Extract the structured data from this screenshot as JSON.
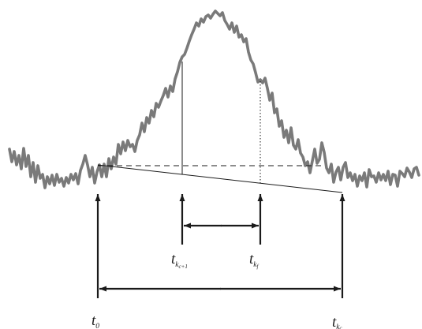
{
  "colors": {
    "signal": "#7a7a7a",
    "line": "#1a1a1a",
    "text": "#222222"
  },
  "labels": {
    "t0": {
      "main": "t",
      "sub": "0"
    },
    "t_left": {
      "main": "t",
      "sub": "k",
      "subsub": "c+1"
    },
    "t_right": {
      "main": "t",
      "sub": "k",
      "subsub": "f"
    },
    "t_end": {
      "main": "t",
      "sub": "k",
      "subsub": "c"
    }
  }
}
